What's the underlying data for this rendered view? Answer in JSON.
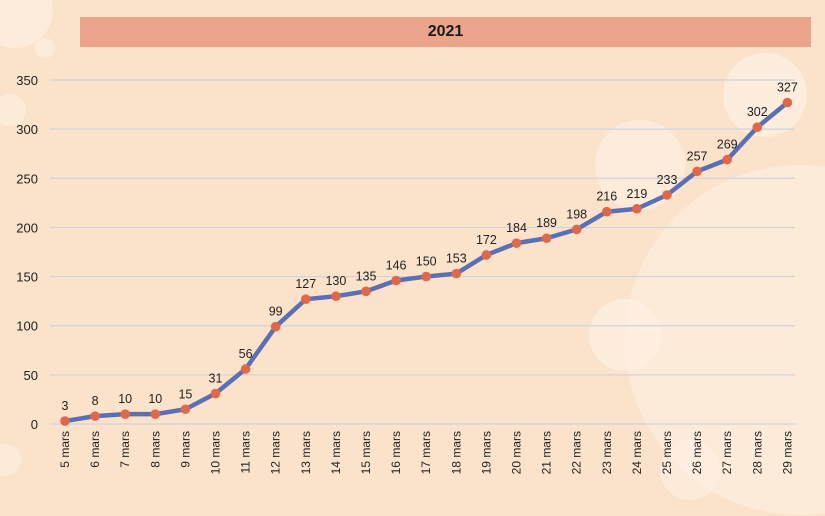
{
  "chart_data": {
    "type": "line",
    "title": "2021",
    "xlabel": "",
    "ylabel": "",
    "ylim": [
      0,
      350
    ],
    "yticks": [
      0,
      50,
      100,
      150,
      200,
      250,
      300,
      350
    ],
    "grid": true,
    "legend": "none",
    "categories": [
      "5 mars",
      "6 mars",
      "7 mars",
      "8 mars",
      "9 mars",
      "10 mars",
      "11 mars",
      "12 mars",
      "13 mars",
      "14 mars",
      "15 mars",
      "16 mars",
      "17 mars",
      "18 mars",
      "19 mars",
      "20 mars",
      "21 mars",
      "22 mars",
      "23 mars",
      "24 mars",
      "25 mars",
      "26 mars",
      "27 mars",
      "28 mars",
      "29 mars"
    ],
    "values": [
      3,
      8,
      10,
      10,
      15,
      31,
      56,
      99,
      127,
      130,
      135,
      146,
      150,
      153,
      172,
      184,
      189,
      198,
      216,
      219,
      233,
      257,
      269,
      302,
      327
    ],
    "colors": {
      "line": "#5b6fb4",
      "marker": "#e0684a",
      "grid": "#cfd3dc",
      "title_bar": "#eba58c",
      "background": "#fbe3cb"
    }
  }
}
